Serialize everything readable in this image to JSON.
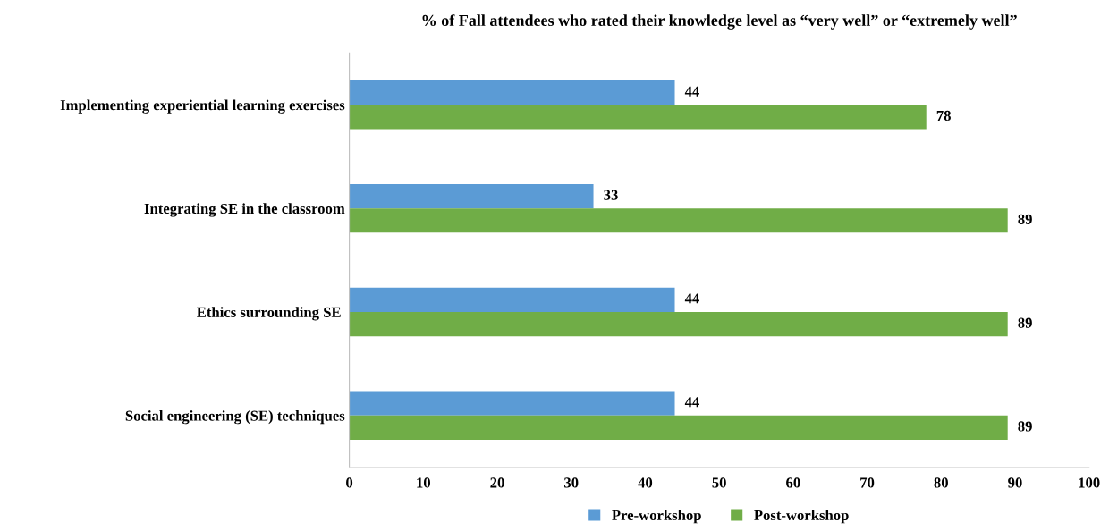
{
  "chart_data": {
    "type": "bar",
    "orientation": "horizontal",
    "title": "% of Fall attendees who rated their knowledge level as “very well” or “extremely well”",
    "categories": [
      "Implementing experiential learning exercises",
      "Integrating SE in the classroom",
      "Ethics surrounding SE ",
      "Social engineering (SE) techniques"
    ],
    "series": [
      {
        "name": "Pre-workshop",
        "color": "#5b9bd5",
        "values": [
          44,
          33,
          44,
          44
        ]
      },
      {
        "name": "Post-workshop",
        "color": "#70ad47",
        "values": [
          78,
          89,
          89,
          89
        ]
      }
    ],
    "xlim": [
      0,
      100
    ],
    "xticks": [
      0,
      10,
      20,
      30,
      40,
      50,
      60,
      70,
      80,
      90,
      100
    ],
    "grid": false,
    "legend": "bottom",
    "data_labels": true
  }
}
